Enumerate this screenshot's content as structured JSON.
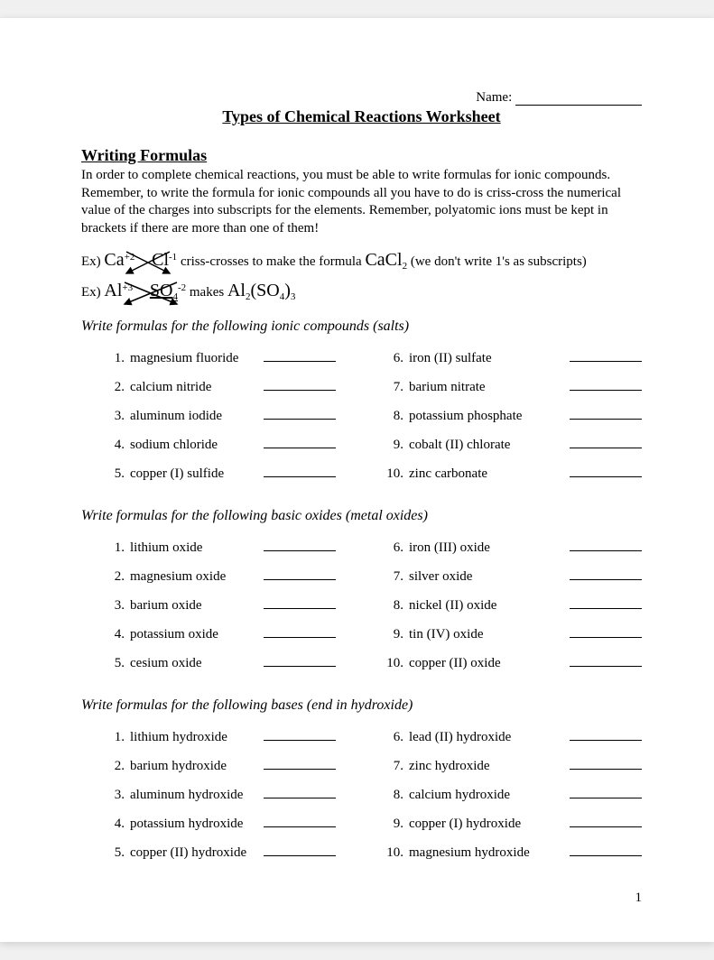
{
  "name_label": "Name:",
  "title": "Types of Chemical Reactions Worksheet",
  "section_head": "Writing Formulas",
  "intro": "In order to complete chemical reactions, you must be able to write formulas for ionic compounds.  Remember, to write the formula for ionic compounds all you have to do is criss-cross the numerical value of the charges into subscripts for the elements.  Remember, polyatomic ions must be kept in brackets if there are more than one of them!",
  "ex_label": "Ex)",
  "ex1_ion1": "Ca",
  "ex1_ion1_charge": "+2",
  "ex1_ion2": "Cl",
  "ex1_ion2_charge": "-1",
  "ex1_mid": " criss-crosses to make the formula ",
  "ex1_result_a": "CaCl",
  "ex1_result_sub": "2",
  "ex1_tail": " (we don't write 1's as subscripts)",
  "ex2_ion1": "Al",
  "ex2_ion1_charge": "+3",
  "ex2_ion2": "SO",
  "ex2_ion2_sub": "4",
  "ex2_ion2_charge": "-2",
  "ex2_mid": "  makes ",
  "ex2_result_a": "Al",
  "ex2_result_sub1": "2",
  "ex2_result_b": "(SO",
  "ex2_result_sub2": "4",
  "ex2_result_c": ")",
  "ex2_result_sub3": "3",
  "prompts": {
    "salts": "Write formulas for the following ionic compounds (salts)",
    "oxides": "Write formulas for the following basic oxides (metal oxides)",
    "bases": "Write formulas for the following bases (end in hydroxide)"
  },
  "salts_left": [
    {
      "n": "1.",
      "t": "magnesium fluoride"
    },
    {
      "n": "2.",
      "t": "calcium nitride"
    },
    {
      "n": "3.",
      "t": "aluminum iodide"
    },
    {
      "n": "4.",
      "t": "sodium chloride"
    },
    {
      "n": "5.",
      "t": "copper (I) sulfide"
    }
  ],
  "salts_right": [
    {
      "n": "6.",
      "t": "iron (II) sulfate"
    },
    {
      "n": "7.",
      "t": "barium nitrate"
    },
    {
      "n": "8.",
      "t": "potassium phosphate"
    },
    {
      "n": "9.",
      "t": "cobalt (II) chlorate"
    },
    {
      "n": "10.",
      "t": "zinc carbonate"
    }
  ],
  "oxides_left": [
    {
      "n": "1.",
      "t": "lithium oxide"
    },
    {
      "n": "2.",
      "t": "magnesium oxide"
    },
    {
      "n": "3.",
      "t": "barium oxide"
    },
    {
      "n": "4.",
      "t": "potassium oxide"
    },
    {
      "n": "5.",
      "t": "cesium oxide"
    }
  ],
  "oxides_right": [
    {
      "n": "6.",
      "t": "iron (III) oxide"
    },
    {
      "n": "7.",
      "t": "silver oxide"
    },
    {
      "n": "8.",
      "t": "nickel (II) oxide"
    },
    {
      "n": "9.",
      "t": "tin (IV) oxide"
    },
    {
      "n": "10.",
      "t": "copper (II) oxide"
    }
  ],
  "bases_left": [
    {
      "n": "1.",
      "t": "lithium hydroxide"
    },
    {
      "n": "2.",
      "t": "barium hydroxide"
    },
    {
      "n": "3.",
      "t": "aluminum hydroxide"
    },
    {
      "n": "4.",
      "t": "potassium hydroxide"
    },
    {
      "n": "5.",
      "t": "copper (II) hydroxide"
    }
  ],
  "bases_right": [
    {
      "n": "6.",
      "t": "lead (II) hydroxide"
    },
    {
      "n": "7.",
      "t": "zinc hydroxide"
    },
    {
      "n": "8.",
      "t": "calcium hydroxide"
    },
    {
      "n": "9.",
      "t": "copper (I) hydroxide"
    },
    {
      "n": "10.",
      "t": "magnesium hydroxide"
    }
  ],
  "page_number": "1",
  "colors": {
    "text": "#000000",
    "page_bg": "#ffffff",
    "outer_bg": "#f0f0f0"
  }
}
